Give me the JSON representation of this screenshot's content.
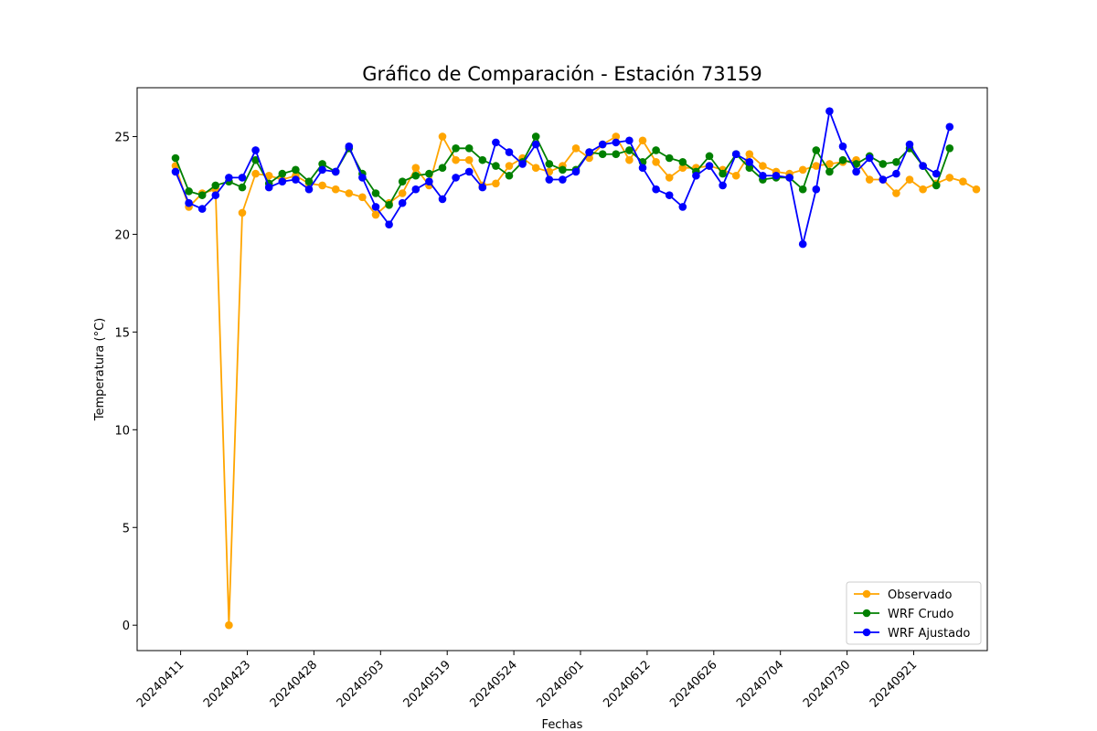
{
  "chart_data": {
    "type": "line",
    "title": "Gráfico de Comparación - Estación 73159",
    "xlabel": "Fechas",
    "ylabel": "Temperatura (°C)",
    "ylim": [
      -1.3,
      27.5
    ],
    "yticks": [
      0,
      5,
      10,
      15,
      20,
      25
    ],
    "xtick_labels": [
      "20240411",
      "20240423",
      "20240428",
      "20240503",
      "20240519",
      "20240524",
      "20240601",
      "20240612",
      "20240626",
      "20240704",
      "20240730",
      "20240921"
    ],
    "grid": false,
    "legend_position": "bottom-right",
    "series": [
      {
        "name": "Observado",
        "color": "#ffa500",
        "values": [
          23.5,
          21.4,
          22.1,
          22.3,
          0.0,
          21.1,
          23.1,
          23.0,
          22.8,
          23.0,
          22.6,
          22.5,
          22.3,
          22.1,
          21.9,
          21.0,
          21.6,
          22.1,
          23.4,
          22.5,
          25.0,
          23.8,
          23.8,
          22.5,
          22.6,
          23.5,
          23.9,
          23.4,
          23.2,
          23.5,
          24.4,
          23.9,
          24.6,
          25.0,
          23.8,
          24.8,
          23.7,
          22.9,
          23.4,
          23.4,
          23.5,
          23.3,
          23.0,
          24.1,
          23.5,
          23.2,
          23.1,
          23.3,
          23.5,
          23.6,
          23.7,
          23.8,
          22.8,
          22.8,
          22.1,
          22.8,
          22.3,
          22.6,
          22.9,
          22.7,
          22.3
        ]
      },
      {
        "name": "WRF Crudo",
        "color": "#008000",
        "values": [
          23.9,
          22.2,
          22.0,
          22.5,
          22.7,
          22.4,
          23.8,
          22.6,
          23.1,
          23.3,
          22.7,
          23.6,
          23.2,
          24.4,
          23.1,
          22.1,
          21.5,
          22.7,
          23.0,
          23.1,
          23.4,
          24.4,
          24.4,
          23.8,
          23.5,
          23.0,
          23.7,
          25.0,
          23.6,
          23.3,
          23.3,
          24.2,
          24.1,
          24.1,
          24.3,
          23.7,
          24.3,
          23.9,
          23.7,
          23.2,
          24.0,
          23.1,
          24.1,
          23.4,
          22.8,
          22.9,
          22.9,
          22.3,
          24.3,
          23.2,
          23.8,
          23.6,
          24.0,
          23.6,
          23.7,
          24.4,
          23.5,
          22.5,
          24.4
        ]
      },
      {
        "name": "WRF Ajustado",
        "color": "#0000ff",
        "values": [
          23.2,
          21.6,
          21.3,
          22.0,
          22.9,
          22.9,
          24.3,
          22.4,
          22.7,
          22.8,
          22.3,
          23.3,
          23.2,
          24.5,
          22.9,
          21.4,
          20.5,
          21.6,
          22.3,
          22.7,
          21.8,
          22.9,
          23.2,
          22.4,
          24.7,
          24.2,
          23.6,
          24.6,
          22.8,
          22.8,
          23.2,
          24.2,
          24.6,
          24.7,
          24.8,
          23.4,
          22.3,
          22.0,
          21.4,
          23.0,
          23.5,
          22.5,
          24.1,
          23.7,
          23.0,
          23.0,
          22.9,
          19.5,
          22.3,
          26.3,
          24.5,
          23.2,
          23.9,
          22.8,
          23.1,
          24.6,
          23.5,
          23.1,
          25.5
        ]
      }
    ]
  }
}
